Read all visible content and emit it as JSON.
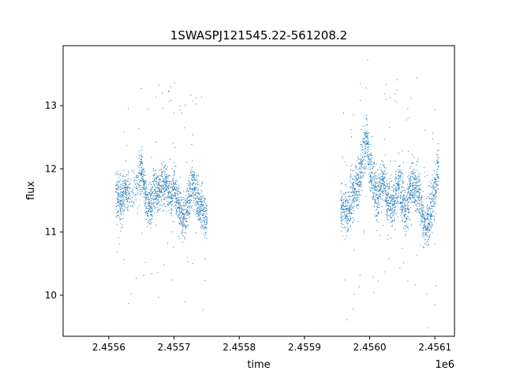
{
  "chart_data": {
    "type": "scatter",
    "title": "1SWASPJ121545.22-561208.2",
    "xlabel": "time",
    "ylabel": "flux",
    "x_offset_label": "1e6",
    "xlim": [
      2.45553,
      2.45613
    ],
    "ylim": [
      9.35,
      13.95
    ],
    "x_ticks": [
      2.4556,
      2.4557,
      2.4558,
      2.4559,
      2.456,
      2.4561
    ],
    "x_tick_labels": [
      "2.4556",
      "2.4557",
      "2.4558",
      "2.4559",
      "2.4560",
      "2.4561"
    ],
    "y_ticks": [
      10,
      11,
      12,
      13
    ],
    "y_tick_labels": [
      "10",
      "11",
      "12",
      "13"
    ],
    "grid": false,
    "marker_color": "#1f77b4",
    "point_summary": [
      {
        "x_start": 2.45561,
        "x_end": 2.45575,
        "y_mean": 11.6,
        "y_spread": 0.45
      },
      {
        "x_start": 2.45595,
        "x_end": 2.45611,
        "y_mean": 11.7,
        "y_spread": 0.5
      }
    ],
    "series": [
      {
        "x": [
          2.45561,
          2.455615,
          2.45562,
          2.455625,
          2.45563,
          2.455645,
          2.45565,
          2.455655,
          2.45566,
          2.455665,
          2.45567,
          2.455675,
          2.45568,
          2.455685,
          2.45569,
          2.455695,
          2.4557,
          2.455705,
          2.45571,
          2.455715,
          2.45572,
          2.455725,
          2.45573,
          2.455735,
          2.45574,
          2.455745,
          2.45575
        ],
        "y": [
          11.6,
          11.55,
          11.5,
          11.7,
          11.6,
          11.8,
          12.0,
          11.6,
          11.4,
          11.5,
          11.7,
          11.6,
          11.75,
          11.8,
          11.7,
          11.6,
          11.75,
          11.5,
          11.3,
          11.2,
          11.4,
          11.7,
          11.8,
          11.5,
          11.4,
          11.3,
          11.2
        ]
      },
      {
        "x": [
          2.455955,
          2.45596,
          2.455965,
          2.45597,
          2.455975,
          2.45598,
          2.455985,
          2.45599,
          2.455995,
          2.456,
          2.456005,
          2.45601,
          2.456015,
          2.45602,
          2.456025,
          2.45603,
          2.456035,
          2.45604,
          2.456045,
          2.45605,
          2.456055,
          2.45606,
          2.456065,
          2.45607,
          2.456075,
          2.45608,
          2.456085,
          2.45609,
          2.456095,
          2.4561,
          2.456105
        ],
        "y": [
          11.35,
          11.4,
          11.3,
          11.5,
          11.6,
          11.7,
          11.9,
          12.3,
          12.5,
          12.0,
          11.8,
          11.5,
          11.7,
          11.9,
          11.6,
          11.5,
          11.4,
          11.6,
          11.8,
          11.5,
          11.3,
          11.6,
          11.8,
          11.7,
          11.6,
          11.3,
          11.1,
          11.2,
          11.4,
          11.7,
          12.0
        ]
      }
    ]
  }
}
